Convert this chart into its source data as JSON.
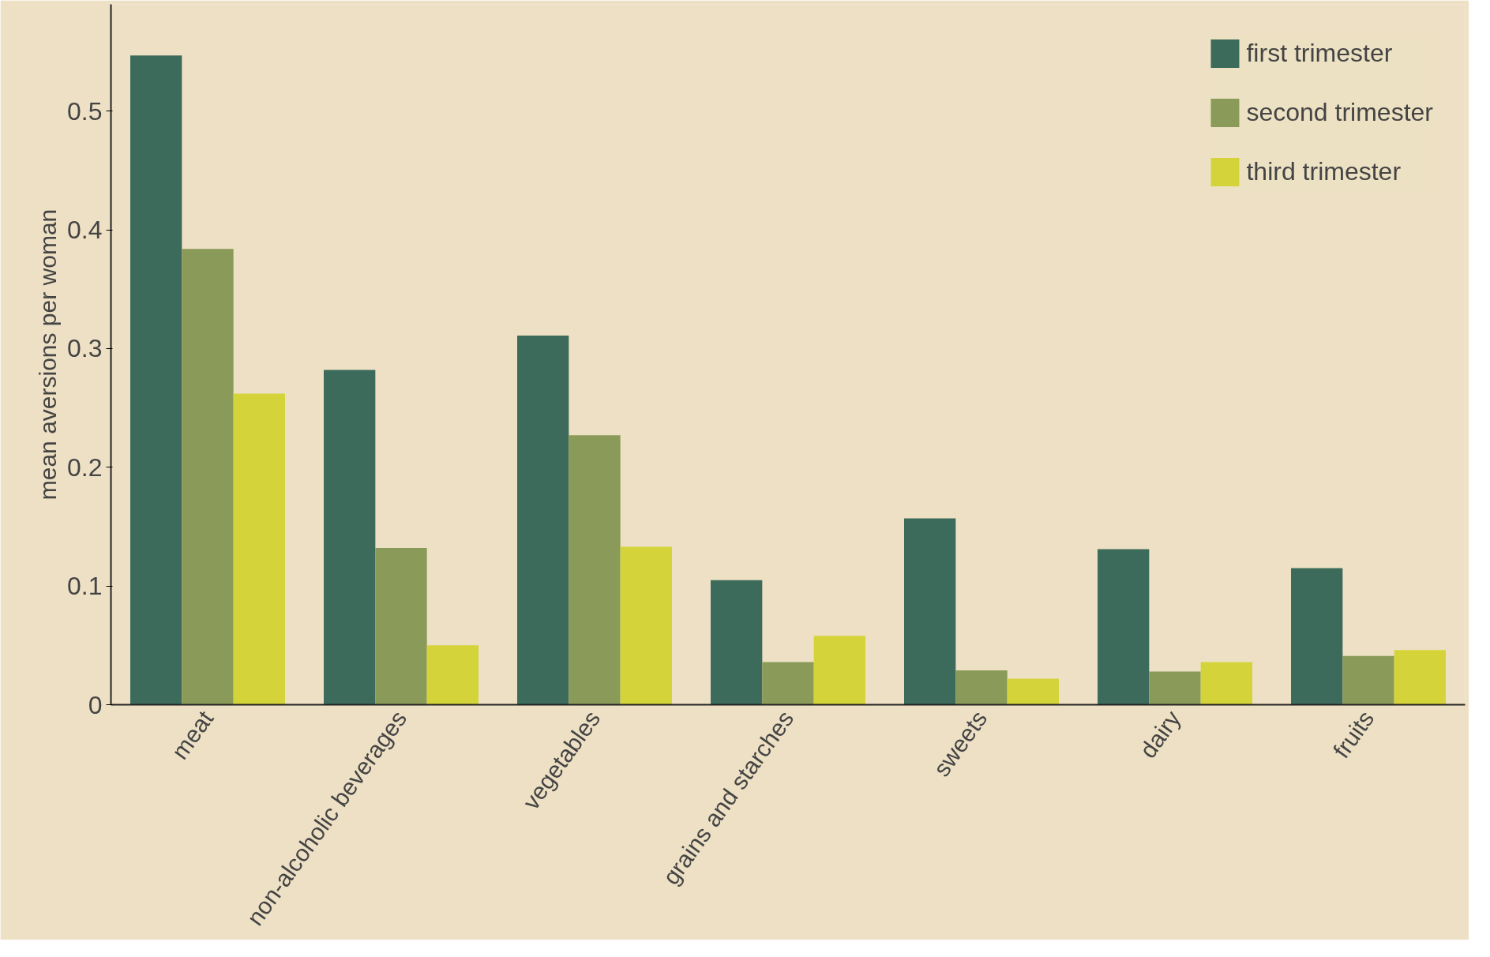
{
  "chart_data": {
    "type": "bar",
    "ylabel": "mean aversions per woman",
    "categories": [
      "meat",
      "non-alcoholic beverages",
      "vegetables",
      "grains and starches",
      "sweets",
      "dairy",
      "fruits"
    ],
    "series": [
      {
        "name": "first trimester",
        "color": "#3d6b5b",
        "values": [
          0.547,
          0.282,
          0.311,
          0.105,
          0.157,
          0.131,
          0.115
        ]
      },
      {
        "name": "second trimester",
        "color": "#8a9a58",
        "values": [
          0.384,
          0.132,
          0.227,
          0.036,
          0.029,
          0.028,
          0.041
        ]
      },
      {
        "name": "third trimester",
        "color": "#d4d43a",
        "values": [
          0.262,
          0.05,
          0.133,
          0.058,
          0.022,
          0.036,
          0.046
        ]
      }
    ],
    "ylim": [
      0,
      0.59
    ],
    "yticks": [
      0,
      0.1,
      0.2,
      0.3,
      0.4,
      0.5
    ],
    "grid": false,
    "legend": "top right"
  }
}
